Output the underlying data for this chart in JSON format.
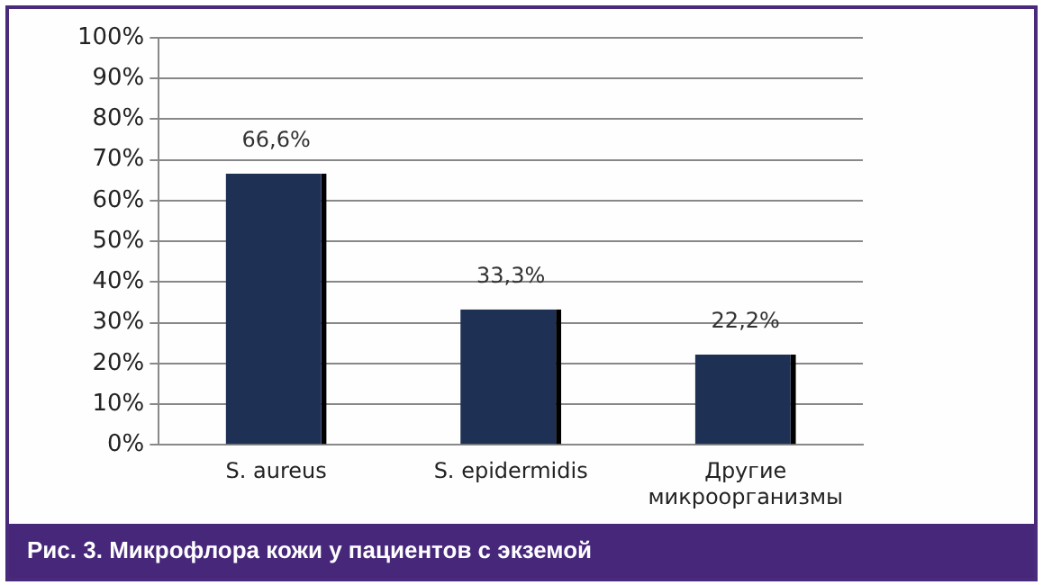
{
  "chart_data": {
    "type": "bar",
    "title": "Рис. 3. Микрофлора кожи у пациентов с экземой",
    "categories": [
      "S. aureus",
      "S. epidermidis",
      "Другие микроорганизмы"
    ],
    "values": [
      66.6,
      33.3,
      22.2
    ],
    "color": "#1f3055",
    "value_labels": [
      "66,6%",
      "33,3%",
      "22,2%"
    ],
    "ylim": [
      0,
      100
    ],
    "yticks": [
      {
        "value": 0,
        "label": "0%"
      },
      {
        "value": 10,
        "label": "10%"
      },
      {
        "value": 20,
        "label": "20%"
      },
      {
        "value": 30,
        "label": "30%"
      },
      {
        "value": 40,
        "label": "40%"
      },
      {
        "value": 50,
        "label": "50%"
      },
      {
        "value": 60,
        "label": "60%"
      },
      {
        "value": 70,
        "label": "70%"
      },
      {
        "value": 80,
        "label": "80%"
      },
      {
        "value": 90,
        "label": "90%"
      },
      {
        "value": 100,
        "label": "100%"
      }
    ],
    "grid": "y",
    "legend": false
  }
}
